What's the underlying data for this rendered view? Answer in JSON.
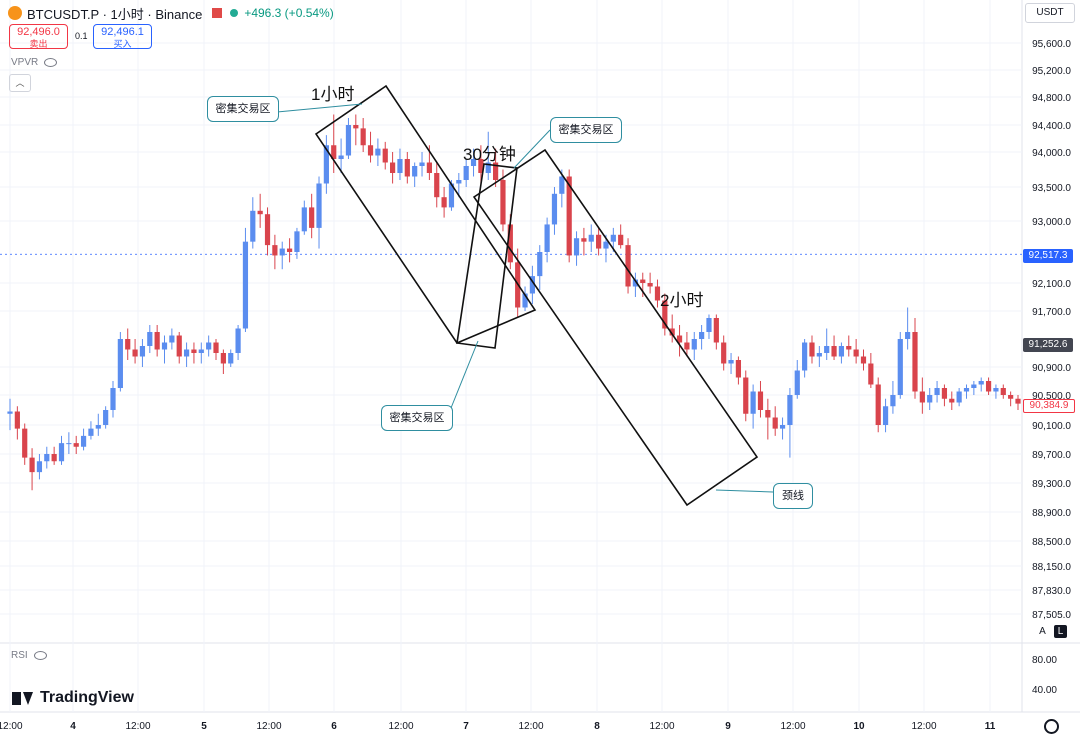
{
  "header": {
    "symbol": "BTCUSDT.P · 1小时 · Binance",
    "change": "+496.3 (+0.54%)"
  },
  "order": {
    "sell_price": "92,496.0",
    "sell_label": "卖出",
    "qty": "0.1",
    "buy_price": "92,496.1",
    "buy_label": "买入"
  },
  "indicators": {
    "vpvr": "VPVR",
    "rsi": "RSI"
  },
  "currency_button": "USDT",
  "axis_buttons": {
    "auto": "A",
    "log": "L"
  },
  "brand": "TradingView",
  "annotations": {
    "label_1h": "1小时",
    "label_30m": "30分钟",
    "label_2h": "2小时",
    "callout_top_left": "密集交易区",
    "callout_top_right": "密集交易区",
    "callout_bottom": "密集交易区",
    "callout_neckline": "颈线"
  },
  "colors": {
    "up": "#5b8def",
    "down": "#d9444c",
    "accent": "#2962ff"
  },
  "chart_data": {
    "type": "candlestick",
    "y_axis_ticks": [
      "95,600.0",
      "95,200.0",
      "94,800.0",
      "94,400.0",
      "94,000.0",
      "93,500.0",
      "93,000.0",
      "92,100.0",
      "91,700.0",
      "90,900.0",
      "90,500.0",
      "90,100.0",
      "89,700.0",
      "89,300.0",
      "88,900.0",
      "88,500.0",
      "88,150.0",
      "87,830.0",
      "87,505.0"
    ],
    "rsi_ticks": [
      "80.00",
      "40.00"
    ],
    "x_axis_ticks": [
      "12:00",
      "4",
      "12:00",
      "5",
      "12:00",
      "6",
      "12:00",
      "7",
      "12:00",
      "8",
      "12:00",
      "9",
      "12:00",
      "10",
      "12:00",
      "11"
    ],
    "price_tags": {
      "current": "92,517.3",
      "crosshair": "91,252.6",
      "last": "90,384.9"
    },
    "candles_ohlc": [
      [
        90250,
        90450,
        90030,
        90280
      ],
      [
        90280,
        90350,
        89900,
        90050
      ],
      [
        90050,
        90120,
        89550,
        89650
      ],
      [
        89650,
        89780,
        89200,
        89450
      ],
      [
        89450,
        89700,
        89350,
        89600
      ],
      [
        89600,
        89800,
        89500,
        89700
      ],
      [
        89700,
        89800,
        89550,
        89600
      ],
      [
        89600,
        89950,
        89550,
        89850
      ],
      [
        89850,
        90000,
        89700,
        89850
      ],
      [
        89850,
        89950,
        89700,
        89800
      ],
      [
        89800,
        90050,
        89750,
        89950
      ],
      [
        89950,
        90150,
        89900,
        90050
      ],
      [
        90050,
        90250,
        89950,
        90100
      ],
      [
        90100,
        90350,
        90050,
        90300
      ],
      [
        90300,
        90700,
        90200,
        90600
      ],
      [
        90600,
        91400,
        90550,
        91300
      ],
      [
        91300,
        91450,
        91000,
        91150
      ],
      [
        91150,
        91300,
        90950,
        91050
      ],
      [
        91050,
        91300,
        90900,
        91200
      ],
      [
        91200,
        91500,
        91100,
        91400
      ],
      [
        91400,
        91500,
        91050,
        91150
      ],
      [
        91150,
        91350,
        90950,
        91250
      ],
      [
        91250,
        91450,
        91150,
        91350
      ],
      [
        91350,
        91400,
        90950,
        91050
      ],
      [
        91050,
        91250,
        90900,
        91150
      ],
      [
        91150,
        91250,
        90950,
        91100
      ],
      [
        91100,
        91250,
        90950,
        91150
      ],
      [
        91150,
        91350,
        91050,
        91250
      ],
      [
        91250,
        91300,
        91000,
        91100
      ],
      [
        91100,
        91150,
        90800,
        90950
      ],
      [
        90950,
        91150,
        90900,
        91100
      ],
      [
        91100,
        91500,
        91000,
        91450
      ],
      [
        91450,
        92900,
        91400,
        92700
      ],
      [
        92700,
        93350,
        92600,
        93150
      ],
      [
        93150,
        93400,
        92900,
        93100
      ],
      [
        93100,
        93200,
        92500,
        92650
      ],
      [
        92650,
        92800,
        92300,
        92500
      ],
      [
        92500,
        92700,
        92300,
        92600
      ],
      [
        92600,
        92750,
        92400,
        92550
      ],
      [
        92550,
        92900,
        92450,
        92850
      ],
      [
        92850,
        93300,
        92800,
        93200
      ],
      [
        93200,
        93400,
        92750,
        92900
      ],
      [
        92900,
        93650,
        92600,
        93550
      ],
      [
        93550,
        94250,
        93400,
        94100
      ],
      [
        94100,
        94550,
        93700,
        93900
      ],
      [
        93900,
        94200,
        93700,
        93950
      ],
      [
        93950,
        94500,
        93900,
        94400
      ],
      [
        94400,
        94550,
        94100,
        94350
      ],
      [
        94350,
        94500,
        94000,
        94100
      ],
      [
        94100,
        94300,
        93850,
        93950
      ],
      [
        93950,
        94200,
        93800,
        94050
      ],
      [
        94050,
        94150,
        93750,
        93850
      ],
      [
        93850,
        94000,
        93550,
        93700
      ],
      [
        93700,
        94050,
        93600,
        93900
      ],
      [
        93900,
        94000,
        93550,
        93650
      ],
      [
        93650,
        93850,
        93500,
        93800
      ],
      [
        93800,
        94000,
        93650,
        93850
      ],
      [
        93850,
        94100,
        93600,
        93700
      ],
      [
        93700,
        93850,
        93200,
        93350
      ],
      [
        93350,
        93500,
        93050,
        93200
      ],
      [
        93200,
        93600,
        93150,
        93550
      ],
      [
        93550,
        93700,
        93350,
        93600
      ],
      [
        93600,
        93900,
        93500,
        93800
      ],
      [
        93800,
        94050,
        93650,
        93900
      ],
      [
        93900,
        94100,
        93550,
        93700
      ],
      [
        93700,
        94300,
        93600,
        93850
      ],
      [
        93850,
        94050,
        93500,
        93600
      ],
      [
        93600,
        93750,
        92850,
        92950
      ],
      [
        92950,
        93100,
        92300,
        92400
      ],
      [
        92400,
        92600,
        91600,
        91750
      ],
      [
        91750,
        92050,
        91700,
        91950
      ],
      [
        91950,
        92350,
        91800,
        92200
      ],
      [
        92200,
        92650,
        92000,
        92550
      ],
      [
        92550,
        93050,
        92400,
        92950
      ],
      [
        92950,
        93500,
        92800,
        93400
      ],
      [
        93400,
        93750,
        93200,
        93650
      ],
      [
        93650,
        93750,
        92400,
        92500
      ],
      [
        92500,
        92850,
        92350,
        92750
      ],
      [
        92750,
        92900,
        92500,
        92700
      ],
      [
        92700,
        92950,
        92550,
        92800
      ],
      [
        92800,
        92900,
        92500,
        92600
      ],
      [
        92600,
        92800,
        92400,
        92700
      ],
      [
        92700,
        92900,
        92550,
        92800
      ],
      [
        92800,
        92950,
        92600,
        92650
      ],
      [
        92650,
        92750,
        91950,
        92050
      ],
      [
        92050,
        92250,
        91900,
        92150
      ],
      [
        92150,
        92250,
        91900,
        92100
      ],
      [
        92100,
        92250,
        91950,
        92050
      ],
      [
        92050,
        92150,
        91750,
        91850
      ],
      [
        91850,
        91950,
        91350,
        91450
      ],
      [
        91450,
        91650,
        91250,
        91350
      ],
      [
        91350,
        91500,
        91050,
        91250
      ],
      [
        91250,
        91400,
        91050,
        91150
      ],
      [
        91150,
        91400,
        91000,
        91300
      ],
      [
        91300,
        91500,
        91150,
        91400
      ],
      [
        91400,
        91650,
        91300,
        91600
      ],
      [
        91600,
        91650,
        91150,
        91250
      ],
      [
        91250,
        91350,
        90850,
        90950
      ],
      [
        90950,
        91100,
        90800,
        91000
      ],
      [
        91000,
        91050,
        90650,
        90750
      ],
      [
        90750,
        90850,
        90150,
        90250
      ],
      [
        90250,
        90650,
        90050,
        90550
      ],
      [
        90550,
        90700,
        90200,
        90300
      ],
      [
        90300,
        90450,
        89900,
        90200
      ],
      [
        90200,
        90350,
        89950,
        90050
      ],
      [
        90050,
        90200,
        89900,
        90100
      ],
      [
        90100,
        90600,
        89650,
        90500
      ],
      [
        90500,
        91000,
        90450,
        90850
      ],
      [
        90850,
        91300,
        90750,
        91250
      ],
      [
        91250,
        91350,
        90950,
        91050
      ],
      [
        91050,
        91200,
        90900,
        91100
      ],
      [
        91100,
        91450,
        91000,
        91200
      ],
      [
        91200,
        91350,
        91000,
        91050
      ],
      [
        91050,
        91250,
        90950,
        91200
      ],
      [
        91200,
        91350,
        91050,
        91150
      ],
      [
        91150,
        91300,
        90950,
        91050
      ],
      [
        91050,
        91150,
        90850,
        90950
      ],
      [
        90950,
        91100,
        90600,
        90650
      ],
      [
        90650,
        90750,
        90000,
        90100
      ],
      [
        90100,
        90450,
        90000,
        90350
      ],
      [
        90350,
        90700,
        90250,
        90500
      ],
      [
        90500,
        91400,
        90450,
        91300
      ],
      [
        91300,
        91750,
        91150,
        91400
      ],
      [
        91400,
        91600,
        90450,
        90550
      ],
      [
        90550,
        90750,
        90250,
        90400
      ],
      [
        90400,
        90600,
        90300,
        90500
      ],
      [
        90500,
        90700,
        90400,
        90600
      ],
      [
        90600,
        90650,
        90350,
        90450
      ],
      [
        90450,
        90550,
        90300,
        90400
      ],
      [
        90400,
        90600,
        90350,
        90550
      ],
      [
        90550,
        90650,
        90450,
        90600
      ],
      [
        90600,
        90700,
        90500,
        90650
      ],
      [
        90650,
        90750,
        90550,
        90700
      ],
      [
        90700,
        90750,
        90500,
        90550
      ],
      [
        90550,
        90650,
        90450,
        90600
      ],
      [
        90600,
        90650,
        90450,
        90500
      ],
      [
        90500,
        90550,
        90350,
        90450
      ],
      [
        90450,
        90500,
        90300,
        90385
      ]
    ]
  }
}
